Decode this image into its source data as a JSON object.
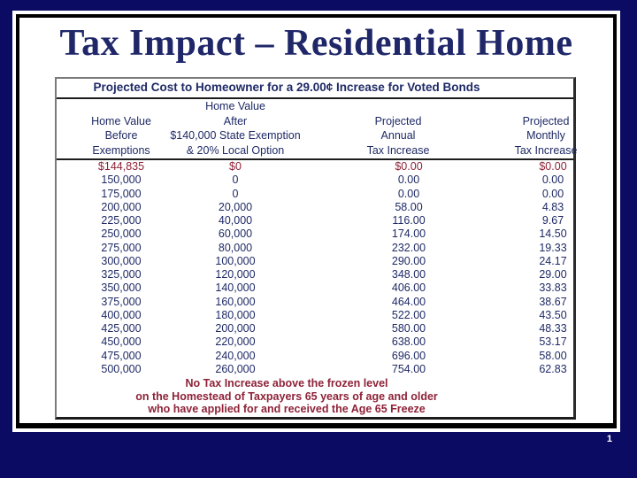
{
  "slide": {
    "title": "Tax Impact – Residential Home",
    "page_number": "1",
    "colors": {
      "background": "#0B0B63",
      "title_text": "#1F2769",
      "table_text": "#1F2A66",
      "highlight_red": "#8E2238",
      "frame_border": "#000000"
    }
  },
  "table": {
    "caption": "Projected Cost to Homeowner for a 29.00¢ Increase for Voted Bonds",
    "columns": [
      {
        "lines": [
          "Home Value",
          "Before",
          "Exemptions"
        ]
      },
      {
        "lines": [
          "Home Value",
          "After",
          "$140,000 State Exemption",
          "& 20% Local Option"
        ]
      },
      {
        "lines": [
          "Projected",
          "Annual",
          "Tax Increase"
        ]
      },
      {
        "lines": [
          "Projected",
          "Monthly",
          "Tax Increase"
        ]
      }
    ],
    "rows": [
      [
        "$144,835",
        "$0",
        "$0.00",
        "$0.00"
      ],
      [
        "150,000",
        "0",
        "0.00",
        "0.00"
      ],
      [
        "175,000",
        "0",
        "0.00",
        "0.00"
      ],
      [
        "200,000",
        "20,000",
        "58.00",
        "4.83"
      ],
      [
        "225,000",
        "40,000",
        "116.00",
        "9.67"
      ],
      [
        "250,000",
        "60,000",
        "174.00",
        "14.50"
      ],
      [
        "275,000",
        "80,000",
        "232.00",
        "19.33"
      ],
      [
        "300,000",
        "100,000",
        "290.00",
        "24.17"
      ],
      [
        "325,000",
        "120,000",
        "348.00",
        "29.00"
      ],
      [
        "350,000",
        "140,000",
        "406.00",
        "33.83"
      ],
      [
        "375,000",
        "160,000",
        "464.00",
        "38.67"
      ],
      [
        "400,000",
        "180,000",
        "522.00",
        "43.50"
      ],
      [
        "425,000",
        "200,000",
        "580.00",
        "48.33"
      ],
      [
        "450,000",
        "220,000",
        "638.00",
        "53.17"
      ],
      [
        "475,000",
        "240,000",
        "696.00",
        "58.00"
      ],
      [
        "500,000",
        "260,000",
        "754.00",
        "62.83"
      ]
    ],
    "highlight_row_index": 0,
    "note_lines": [
      "No Tax Increase above the frozen level",
      "on the Homestead of Taxpayers 65 years of age and older",
      "who have applied for and received the Age 65 Freeze"
    ]
  }
}
